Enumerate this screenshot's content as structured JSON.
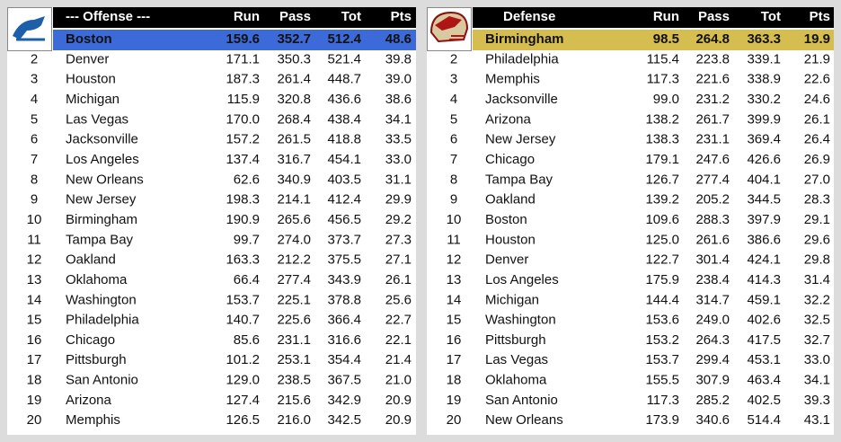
{
  "offense": {
    "header": [
      "--- Offense ---",
      "Run",
      "Pass",
      "Tot",
      "Pts"
    ],
    "rows": [
      {
        "team": "Boston",
        "stats": [
          "159.6",
          "352.7",
          "512.4",
          "48.6"
        ]
      },
      {
        "rank": 2,
        "team": "Denver",
        "stats": [
          "171.1",
          "350.3",
          "521.4",
          "39.8"
        ]
      },
      {
        "rank": 3,
        "team": "Houston",
        "stats": [
          "187.3",
          "261.4",
          "448.7",
          "39.0"
        ]
      },
      {
        "rank": 4,
        "team": "Michigan",
        "stats": [
          "115.9",
          "320.8",
          "436.6",
          "38.6"
        ]
      },
      {
        "rank": 5,
        "team": "Las Vegas",
        "stats": [
          "170.0",
          "268.4",
          "438.4",
          "34.1"
        ]
      },
      {
        "rank": 6,
        "team": "Jacksonville",
        "stats": [
          "157.2",
          "261.5",
          "418.8",
          "33.5"
        ]
      },
      {
        "rank": 7,
        "team": "Los Angeles",
        "stats": [
          "137.4",
          "316.7",
          "454.1",
          "33.0"
        ]
      },
      {
        "rank": 8,
        "team": "New Orleans",
        "stats": [
          "62.6",
          "340.9",
          "403.5",
          "31.1"
        ]
      },
      {
        "rank": 9,
        "team": "New Jersey",
        "stats": [
          "198.3",
          "214.1",
          "412.4",
          "29.9"
        ]
      },
      {
        "rank": 10,
        "team": "Birmingham",
        "stats": [
          "190.9",
          "265.6",
          "456.5",
          "29.2"
        ]
      },
      {
        "rank": 11,
        "team": "Tampa Bay",
        "stats": [
          "99.7",
          "274.0",
          "373.7",
          "27.3"
        ]
      },
      {
        "rank": 12,
        "team": "Oakland",
        "stats": [
          "163.3",
          "212.2",
          "375.5",
          "27.1"
        ]
      },
      {
        "rank": 13,
        "team": "Oklahoma",
        "stats": [
          "66.4",
          "277.4",
          "343.9",
          "26.1"
        ]
      },
      {
        "rank": 14,
        "team": "Washington",
        "stats": [
          "153.7",
          "225.1",
          "378.8",
          "25.6"
        ]
      },
      {
        "rank": 15,
        "team": "Philadelphia",
        "stats": [
          "140.7",
          "225.6",
          "366.4",
          "22.7"
        ]
      },
      {
        "rank": 16,
        "team": "Chicago",
        "stats": [
          "85.6",
          "231.1",
          "316.6",
          "22.1"
        ]
      },
      {
        "rank": 17,
        "team": "Pittsburgh",
        "stats": [
          "101.2",
          "253.1",
          "354.4",
          "21.4"
        ]
      },
      {
        "rank": 18,
        "team": "San Antonio",
        "stats": [
          "129.0",
          "238.5",
          "367.5",
          "21.0"
        ]
      },
      {
        "rank": 19,
        "team": "Arizona",
        "stats": [
          "127.4",
          "215.6",
          "342.9",
          "20.9"
        ]
      },
      {
        "rank": 20,
        "team": "Memphis",
        "stats": [
          "126.5",
          "216.0",
          "342.5",
          "20.9"
        ]
      }
    ]
  },
  "defense": {
    "header": [
      "Defense",
      "Run",
      "Pass",
      "Tot",
      "Pts"
    ],
    "rows": [
      {
        "team": "Birmingham",
        "stats": [
          "98.5",
          "264.8",
          "363.3",
          "19.9"
        ]
      },
      {
        "rank": 2,
        "team": "Philadelphia",
        "stats": [
          "115.4",
          "223.8",
          "339.1",
          "21.9"
        ]
      },
      {
        "rank": 3,
        "team": "Memphis",
        "stats": [
          "117.3",
          "221.6",
          "338.9",
          "22.6"
        ]
      },
      {
        "rank": 4,
        "team": "Jacksonville",
        "stats": [
          "99.0",
          "231.2",
          "330.2",
          "24.6"
        ]
      },
      {
        "rank": 5,
        "team": "Arizona",
        "stats": [
          "138.2",
          "261.7",
          "399.9",
          "26.1"
        ]
      },
      {
        "rank": 6,
        "team": "New Jersey",
        "stats": [
          "138.3",
          "231.1",
          "369.4",
          "26.4"
        ]
      },
      {
        "rank": 7,
        "team": "Chicago",
        "stats": [
          "179.1",
          "247.6",
          "426.6",
          "26.9"
        ]
      },
      {
        "rank": 8,
        "team": "Tampa Bay",
        "stats": [
          "126.7",
          "277.4",
          "404.1",
          "27.0"
        ]
      },
      {
        "rank": 9,
        "team": "Oakland",
        "stats": [
          "139.2",
          "205.2",
          "344.5",
          "28.3"
        ]
      },
      {
        "rank": 10,
        "team": "Boston",
        "stats": [
          "109.6",
          "288.3",
          "397.9",
          "29.1"
        ]
      },
      {
        "rank": 11,
        "team": "Houston",
        "stats": [
          "125.0",
          "261.6",
          "386.6",
          "29.6"
        ]
      },
      {
        "rank": 12,
        "team": "Denver",
        "stats": [
          "122.7",
          "301.4",
          "424.1",
          "29.8"
        ]
      },
      {
        "rank": 13,
        "team": "Los Angeles",
        "stats": [
          "175.9",
          "238.4",
          "414.3",
          "31.4"
        ]
      },
      {
        "rank": 14,
        "team": "Michigan",
        "stats": [
          "144.4",
          "314.7",
          "459.1",
          "32.2"
        ]
      },
      {
        "rank": 15,
        "team": "Washington",
        "stats": [
          "153.6",
          "249.0",
          "402.6",
          "32.5"
        ]
      },
      {
        "rank": 16,
        "team": "Pittsburgh",
        "stats": [
          "153.2",
          "264.3",
          "417.5",
          "32.7"
        ]
      },
      {
        "rank": 17,
        "team": "Las Vegas",
        "stats": [
          "153.7",
          "299.4",
          "453.1",
          "33.0"
        ]
      },
      {
        "rank": 18,
        "team": "Oklahoma",
        "stats": [
          "155.5",
          "307.9",
          "463.4",
          "34.1"
        ]
      },
      {
        "rank": 19,
        "team": "San Antonio",
        "stats": [
          "117.3",
          "285.2",
          "402.5",
          "39.3"
        ]
      },
      {
        "rank": 20,
        "team": "New Orleans",
        "stats": [
          "173.9",
          "340.6",
          "514.4",
          "43.1"
        ]
      }
    ]
  }
}
